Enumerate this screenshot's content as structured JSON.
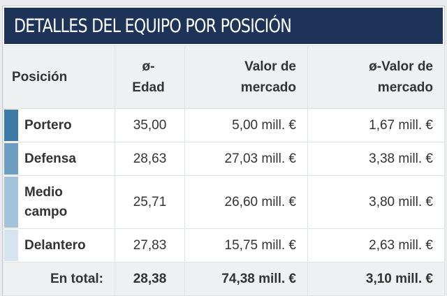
{
  "header": {
    "title": "DETALLES DEL EQUIPO POR POSICIÓN"
  },
  "table": {
    "columns": {
      "position": "Posición",
      "avg_age_line1": "ø-",
      "avg_age_line2": "Edad",
      "market_value_line1": "Valor de",
      "market_value_line2": "mercado",
      "avg_market_value_line1": "ø-Valor de",
      "avg_market_value_line2": "mercado"
    },
    "rows": [
      {
        "position": "Portero",
        "position_line2": "",
        "avg_age": "35,00",
        "market_value": "5,00 mill. €",
        "avg_market_value": "1,67 mill. €",
        "color": "#3d7ba6"
      },
      {
        "position": "Defensa",
        "position_line2": "",
        "avg_age": "28,63",
        "market_value": "27,03 mill. €",
        "avg_market_value": "3,38 mill. €",
        "color": "#6e9fc2"
      },
      {
        "position": "Medio",
        "position_line2": "campo",
        "avg_age": "25,71",
        "market_value": "26,60 mill. €",
        "avg_market_value": "3,80 mill. €",
        "color": "#a3c3da"
      },
      {
        "position": "Delantero",
        "position_line2": "",
        "avg_age": "27,83",
        "market_value": "15,75 mill. €",
        "avg_market_value": "2,63 mill. €",
        "color": "#d6e4ef"
      }
    ],
    "total": {
      "label": "En total:",
      "avg_age": "28,38",
      "market_value": "74,38 mill. €",
      "avg_market_value": "3,10 mill. €"
    }
  }
}
